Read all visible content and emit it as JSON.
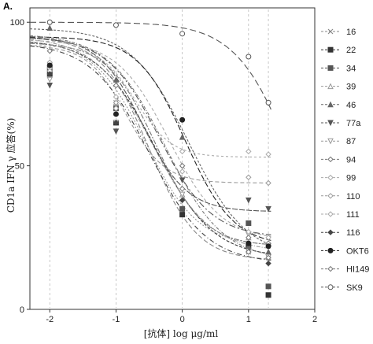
{
  "chart_data": {
    "type": "line",
    "panel_label": "A.",
    "ylabel": "CD1a IFN γ 应答(%)",
    "xlabel": "[抗体] log μg/ml",
    "xlim": [
      -2.3,
      2
    ],
    "ylim": [
      0,
      105
    ],
    "x_ticks": [
      "-2",
      "-1",
      "0",
      "1",
      "2"
    ],
    "y_ticks": [
      "0",
      "50",
      "100"
    ],
    "x_tick_values": [
      -2,
      -1,
      0,
      1,
      2
    ],
    "y_tick_values": [
      0,
      50,
      100
    ],
    "grid": false,
    "legend_position": "right",
    "x": [
      -2,
      -1,
      0,
      1,
      1.3
    ],
    "series": [
      {
        "name": "16",
        "marker": "x",
        "color": "#888888",
        "values": [
          85,
          72,
          40,
          20,
          18
        ],
        "fit": {
          "top": 95,
          "bottom": 17,
          "ec50": -0.5,
          "hill": 1.2
        }
      },
      {
        "name": "22",
        "marker": "square-filled",
        "color": "#333333",
        "values": [
          82,
          65,
          33,
          22,
          5
        ],
        "fit": {
          "top": 94,
          "bottom": 18,
          "ec50": -0.4,
          "hill": 1.0
        }
      },
      {
        "name": "34",
        "marker": "square-filled",
        "color": "#555555",
        "values": [
          84,
          70,
          35,
          30,
          8
        ],
        "fit": {
          "top": 95,
          "bottom": 25,
          "ec50": -0.35,
          "hill": 1.1
        }
      },
      {
        "name": "39",
        "marker": "triangle-open",
        "color": "#999999",
        "values": [
          86,
          72,
          40,
          25,
          20
        ],
        "fit": {
          "top": 95,
          "bottom": 20,
          "ec50": -0.45,
          "hill": 1.0
        }
      },
      {
        "name": "46",
        "marker": "triangle-filled",
        "color": "#666666",
        "values": [
          98,
          80,
          60,
          22,
          20
        ],
        "fit": {
          "top": 98,
          "bottom": 18,
          "ec50": 0.1,
          "hill": 1.0
        }
      },
      {
        "name": "77a",
        "marker": "triangle-down",
        "color": "#555555",
        "values": [
          78,
          62,
          45,
          38,
          35
        ],
        "fit": {
          "top": 95,
          "bottom": 34,
          "ec50": -0.6,
          "hill": 1.3
        }
      },
      {
        "name": "87",
        "marker": "triangle-down-open",
        "color": "#999999",
        "values": [
          80,
          65,
          40,
          26,
          22
        ],
        "fit": {
          "top": 94,
          "bottom": 22,
          "ec50": -0.55,
          "hill": 1.1
        }
      },
      {
        "name": "94",
        "marker": "diamond-open",
        "color": "#777777",
        "values": [
          82,
          70,
          42,
          25,
          23
        ],
        "fit": {
          "top": 93,
          "bottom": 22,
          "ec50": -0.4,
          "hill": 1.2
        }
      },
      {
        "name": "99",
        "marker": "diamond-open",
        "color": "#aaaaaa",
        "values": [
          84,
          74,
          48,
          27,
          25
        ],
        "fit": {
          "top": 94,
          "bottom": 24,
          "ec50": -0.2,
          "hill": 1.1
        }
      },
      {
        "name": "110",
        "marker": "diamond-open",
        "color": "#999999",
        "values": [
          86,
          72,
          50,
          46,
          44
        ],
        "fit": {
          "top": 92,
          "bottom": 44,
          "ec50": -0.85,
          "hill": 1.5
        }
      },
      {
        "name": "111",
        "marker": "diamond-open",
        "color": "#aaaaaa",
        "values": [
          83,
          70,
          55,
          55,
          54
        ],
        "fit": {
          "top": 92,
          "bottom": 53,
          "ec50": -0.7,
          "hill": 1.6
        }
      },
      {
        "name": "116",
        "marker": "diamond-filled",
        "color": "#444444",
        "values": [
          82,
          65,
          38,
          20,
          16
        ],
        "fit": {
          "top": 93,
          "bottom": 16,
          "ec50": -0.5,
          "hill": 1.0
        }
      },
      {
        "name": "OKT6",
        "marker": "circle-filled",
        "color": "#222222",
        "values": [
          85,
          68,
          66,
          23,
          22
        ],
        "fit": {
          "top": 95,
          "bottom": 22,
          "ec50": 0.05,
          "hill": 1.2
        }
      },
      {
        "name": "HI149",
        "marker": "diamond-open",
        "color": "#777777",
        "values": [
          90,
          78,
          50,
          20,
          18
        ],
        "fit": {
          "top": 96,
          "bottom": 17,
          "ec50": -0.25,
          "hill": 1.0
        }
      },
      {
        "name": "SK9",
        "marker": "circle-open",
        "color": "#555555",
        "values": [
          100,
          99,
          96,
          88,
          72
        ],
        "fit": {
          "top": 100,
          "bottom": 0,
          "ec50": 1.7,
          "hill": 1.0
        }
      }
    ]
  }
}
